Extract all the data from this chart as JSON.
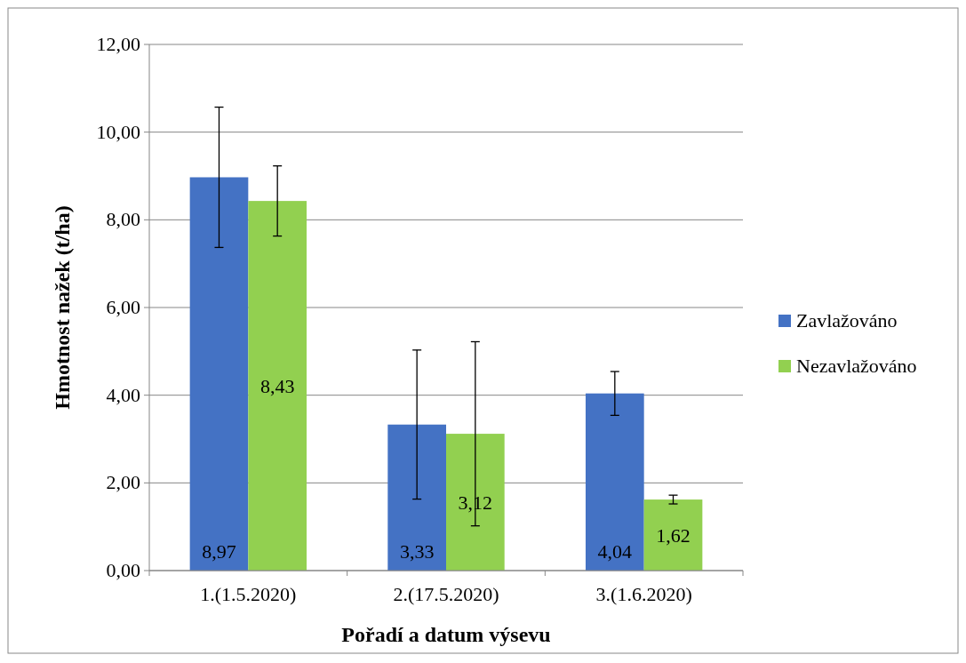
{
  "chart_data": {
    "type": "bar",
    "xlabel": "Pořadí a datum výsevu",
    "ylabel": "Hmotnost nažek (t/ha)",
    "categories": [
      "1.(1.5.2020)",
      "2.(17.5.2020)",
      "3.(1.6.2020)"
    ],
    "series": [
      {
        "name": "Zavlažováno",
        "color": "#4472c4",
        "values": [
          8.97,
          3.33,
          4.04
        ],
        "errors": [
          1.6,
          1.7,
          0.5
        ],
        "value_labels": [
          "8,97",
          "3,33",
          "4,04"
        ]
      },
      {
        "name": "Nezavlažováno",
        "color": "#92d050",
        "values": [
          8.43,
          3.12,
          1.62
        ],
        "errors": [
          0.8,
          2.1,
          0.1
        ],
        "value_labels": [
          "8,43",
          "3,12",
          "1,62"
        ]
      }
    ],
    "ylim": [
      0,
      12
    ],
    "yticks": [
      {
        "value": 0,
        "label": "0,00"
      },
      {
        "value": 2,
        "label": "2,00"
      },
      {
        "value": 4,
        "label": "4,00"
      },
      {
        "value": 6,
        "label": "6,00"
      },
      {
        "value": 8,
        "label": "8,00"
      },
      {
        "value": 10,
        "label": "10,00"
      },
      {
        "value": 12,
        "label": "12,00"
      }
    ],
    "grid": "y",
    "legend": "right"
  }
}
